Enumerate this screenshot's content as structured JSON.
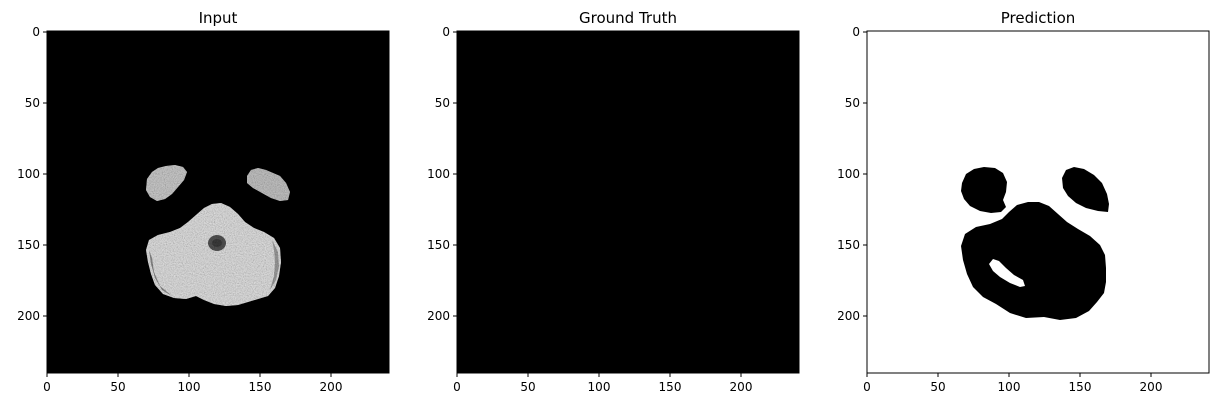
{
  "panels": [
    {
      "title": "Input",
      "image": "grayscale-brain-slice",
      "background": "#000000",
      "xticks": [
        "0",
        "50",
        "100",
        "150",
        "200"
      ],
      "yticks": [
        "0",
        "50",
        "100",
        "150",
        "200"
      ]
    },
    {
      "title": "Ground Truth",
      "image": "empty-black-mask",
      "background": "#000000",
      "xticks": [
        "0",
        "50",
        "100",
        "150",
        "200"
      ],
      "yticks": [
        "0",
        "50",
        "100",
        "150",
        "200"
      ]
    },
    {
      "title": "Prediction",
      "image": "binary-mask",
      "background": "#ffffff",
      "xticks": [
        "0",
        "50",
        "100",
        "150",
        "200"
      ],
      "yticks": [
        "0",
        "50",
        "100",
        "150",
        "200"
      ]
    }
  ]
}
